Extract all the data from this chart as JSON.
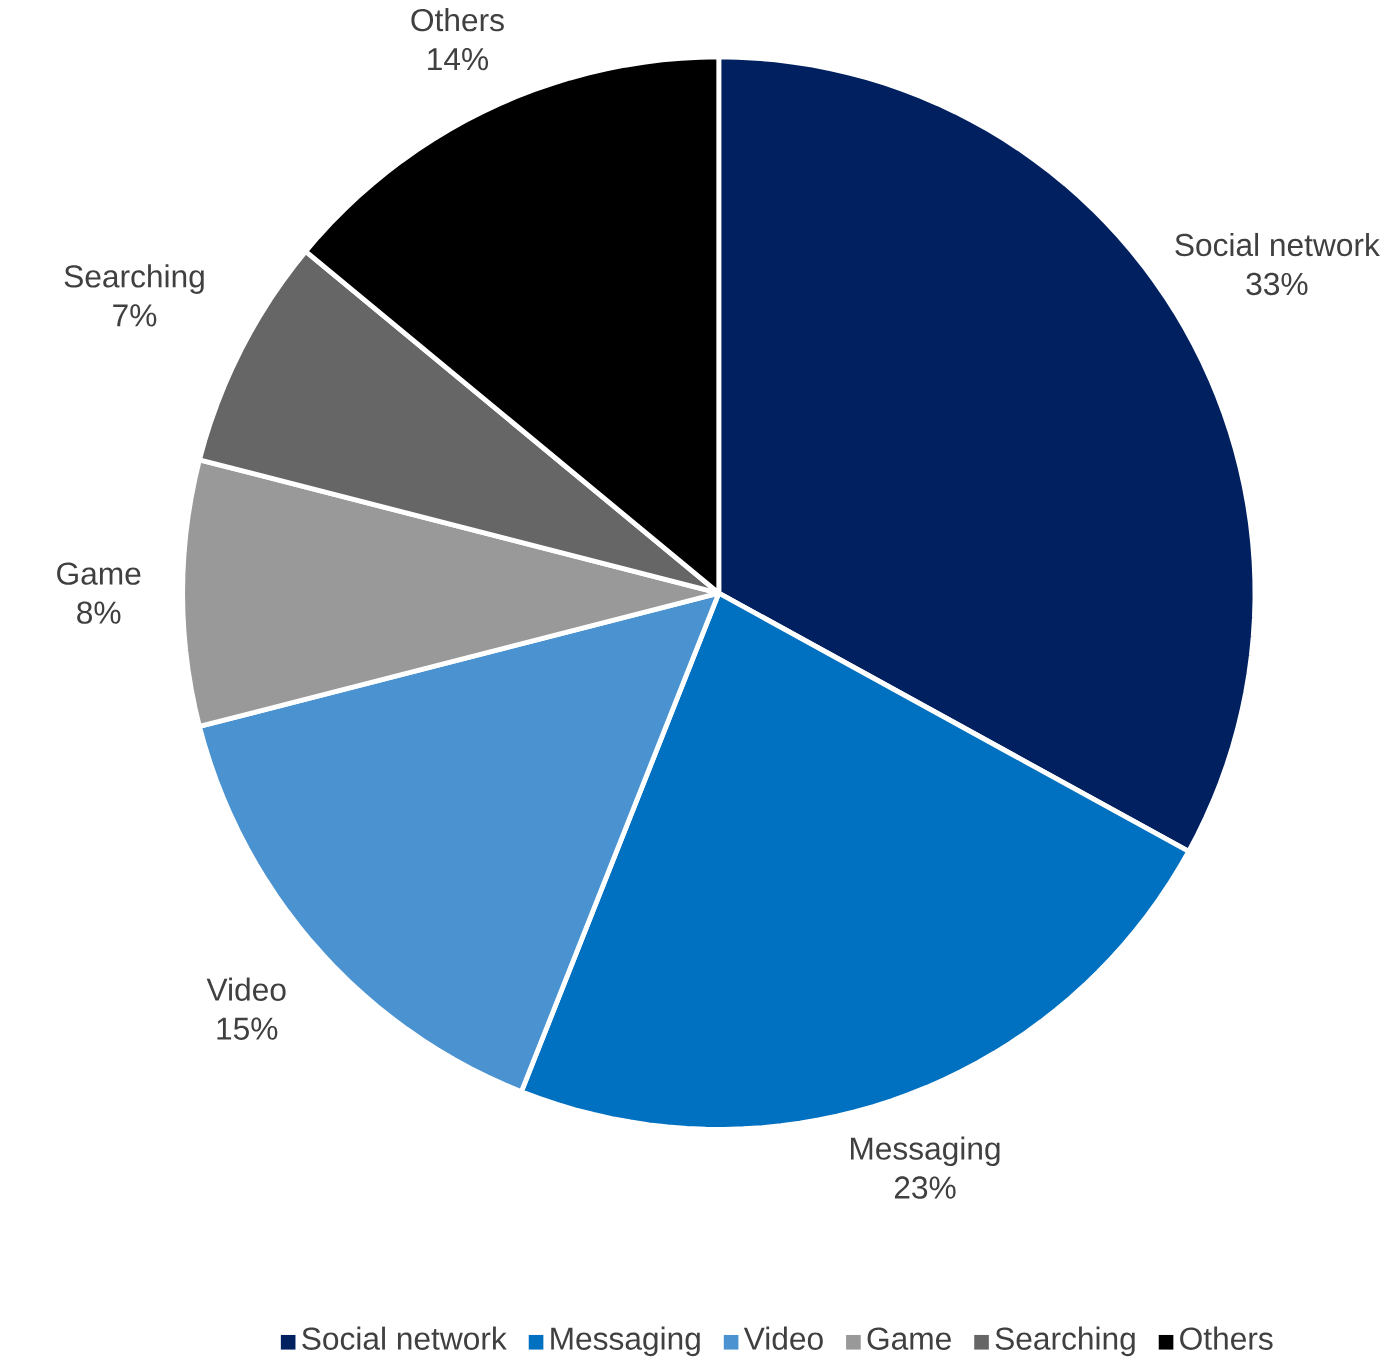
{
  "chart_data": {
    "type": "pie",
    "categories": [
      "Social network",
      "Messaging",
      "Video",
      "Game",
      "Searching",
      "Others"
    ],
    "values": [
      33,
      23,
      15,
      8,
      7,
      14
    ],
    "value_labels": [
      "33%",
      "23%",
      "15%",
      "8%",
      "7%",
      "14%"
    ],
    "colors": [
      "#002060",
      "#0070c0",
      "#4a93d0",
      "#999999",
      "#666666",
      "#000000"
    ],
    "legend": "bottom"
  }
}
